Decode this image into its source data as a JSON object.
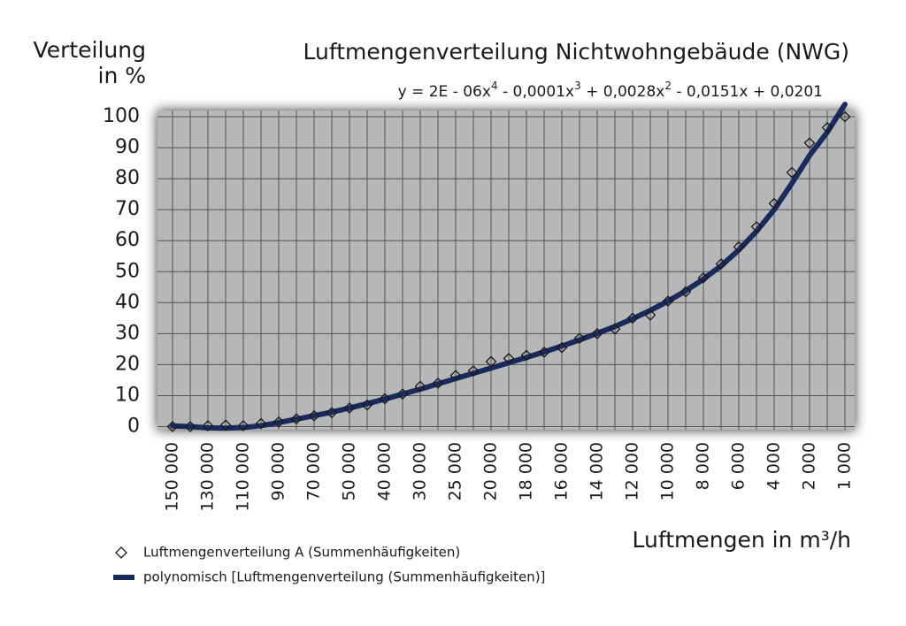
{
  "chart_data": {
    "type": "line",
    "title": "Luftmengenverteilung Nichtwohngebäude (NWG)",
    "equation": [
      "y = 2E - 06x",
      "4",
      " - 0,0001x",
      "3",
      " + 0,0028x",
      "2",
      " - 0,0151x + 0,0201"
    ],
    "y_label": [
      "Verteilung",
      "in %"
    ],
    "x_label": "Luftmengen in m³/h",
    "categories": [
      "150 000",
      null,
      "130 000",
      null,
      "110 000",
      null,
      "90 000",
      null,
      "70 000",
      null,
      "50 000",
      null,
      "40 000",
      null,
      "30 000",
      null,
      "25 000",
      null,
      "20 000",
      null,
      "18 000",
      null,
      "16 000",
      null,
      "14 000",
      null,
      "12 000",
      null,
      "10 000",
      null,
      "8 000",
      null,
      "6 000",
      null,
      "4 000",
      null,
      "2 000",
      null,
      "1 000"
    ],
    "series": [
      {
        "name": "Luftmengenverteilung A (Summenhäufigkeiten)",
        "marker": "diamond",
        "color": "#1a1a1a",
        "values": [
          0,
          0,
          0.3,
          0.5,
          0.3,
          1,
          1.5,
          2.5,
          3.5,
          4.5,
          6,
          7,
          9,
          10.5,
          13,
          14,
          16.5,
          18,
          21,
          22,
          23,
          24,
          25.5,
          28.5,
          30,
          31.5,
          35,
          36,
          40.5,
          43.5,
          48,
          52.5,
          58,
          64.5,
          72,
          82,
          91.5,
          96.5,
          100
        ]
      },
      {
        "name": "polynomisch [Luftmengenverteilung (Summenhäufigkeiten)]",
        "marker": "line",
        "color": "#1b2a5c",
        "values": [
          0.2,
          0,
          -0.4,
          -0.5,
          -0.3,
          0.3,
          1.3,
          2.4,
          3.5,
          4.7,
          6,
          7.4,
          8.9,
          10.5,
          12.1,
          13.8,
          15.5,
          17.2,
          18.9,
          20.6,
          22.3,
          24.1,
          26,
          28,
          30.1,
          32.3,
          34.8,
          37.5,
          40.5,
          43.8,
          47.6,
          51.9,
          57,
          63,
          70,
          78.5,
          87.5,
          95,
          104
        ]
      }
    ],
    "ylim": [
      -1,
      102
    ],
    "yticks": [
      0,
      10,
      20,
      30,
      40,
      50,
      60,
      70,
      80,
      90,
      100
    ],
    "grid": true,
    "plot_color": "#b5b7b9"
  }
}
